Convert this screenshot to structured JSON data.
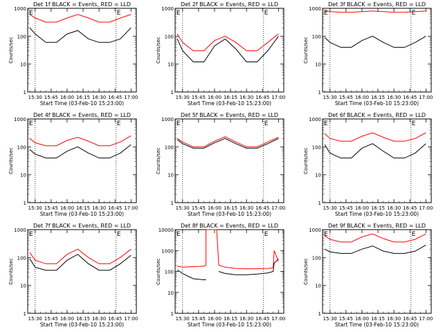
{
  "colors": {
    "events": "#000000",
    "lld": "#ff0000",
    "frame": "#000000",
    "background": "#ffffff"
  },
  "chart_data": [
    {
      "type": "line",
      "title": "Det 1f BLACK = Events, RED = LLD",
      "xlabel": "Start Time (03-Feb-10 15:23:00)",
      "ylabel": "Counts/sec",
      "x_ticks": [
        "15:30",
        "15:45",
        "16:00",
        "16:15",
        "16:30",
        "16:45",
        "17:00"
      ],
      "y_ticks": [
        "1",
        "10",
        "100",
        "1000"
      ],
      "ylim": [
        1,
        1000
      ],
      "yscale": "log",
      "markers": [
        "E",
        "E"
      ],
      "vlines": [
        "15:30",
        "16:46"
      ],
      "series": [
        {
          "role": "events",
          "x": [
            "15:25",
            "15:30",
            "15:40",
            "15:50",
            "16:00",
            "16:10",
            "16:20",
            "16:30",
            "16:40",
            "16:50",
            "17:00"
          ],
          "values": [
            200,
            120,
            60,
            60,
            120,
            160,
            80,
            60,
            60,
            80,
            200
          ]
        },
        {
          "role": "lld",
          "x": [
            "15:25",
            "15:30",
            "15:40",
            "15:50",
            "16:00",
            "16:10",
            "16:20",
            "16:30",
            "16:40",
            "16:50",
            "17:00"
          ],
          "values": [
            600,
            450,
            320,
            320,
            450,
            600,
            450,
            320,
            320,
            450,
            600
          ]
        }
      ]
    },
    {
      "type": "line",
      "title": "Det 2f BLACK = Events, RED = LLD",
      "xlabel": "Start Time (03-Feb-10 15:23:00)",
      "ylabel": "Counts/sec",
      "x_ticks": [
        "15:30",
        "15:45",
        "16:00",
        "16:15",
        "16:30",
        "16:45",
        "17:00"
      ],
      "y_ticks": [
        "1",
        "10",
        "100",
        "1000"
      ],
      "ylim": [
        1,
        1000
      ],
      "yscale": "log",
      "markers": [
        "E",
        "E"
      ],
      "vlines": [
        "15:30",
        "16:46"
      ],
      "series": [
        {
          "role": "events",
          "x": [
            "15:25",
            "15:30",
            "15:40",
            "15:50",
            "16:00",
            "16:10",
            "16:20",
            "16:30",
            "16:40",
            "16:50",
            "17:00"
          ],
          "values": [
            80,
            30,
            12,
            12,
            45,
            80,
            35,
            12,
            12,
            30,
            100
          ]
        },
        {
          "role": "lld",
          "x": [
            "15:25",
            "15:30",
            "15:40",
            "15:50",
            "16:00",
            "16:10",
            "16:20",
            "16:30",
            "16:40",
            "16:50",
            "17:00"
          ],
          "values": [
            120,
            60,
            30,
            30,
            70,
            100,
            60,
            30,
            30,
            60,
            120
          ]
        }
      ]
    },
    {
      "type": "line",
      "title": "Det 3f BLACK = Events, RED = LLD",
      "xlabel": "Start Time (03-Feb-10 15:23:00)",
      "ylabel": "Counts/sec",
      "x_ticks": [
        "15:30",
        "15:45",
        "16:00",
        "16:15",
        "16:30",
        "16:45",
        "17:00"
      ],
      "y_ticks": [
        "1",
        "10",
        "100",
        "1000"
      ],
      "ylim": [
        1,
        1000
      ],
      "yscale": "log",
      "markers": [
        "E",
        "E"
      ],
      "vlines": [
        "15:30",
        "16:46"
      ],
      "series": [
        {
          "role": "events",
          "x": [
            "15:25",
            "15:30",
            "15:40",
            "15:50",
            "16:00",
            "16:10",
            "16:20",
            "16:30",
            "16:40",
            "16:50",
            "17:00"
          ],
          "values": [
            90,
            60,
            40,
            40,
            70,
            100,
            60,
            40,
            40,
            60,
            100
          ]
        },
        {
          "role": "lld",
          "x": [
            "15:25",
            "15:30",
            "15:40",
            "15:50",
            "16:00",
            "16:10",
            "16:20",
            "16:30",
            "16:40",
            "16:50",
            "17:00"
          ],
          "values": [
            800,
            760,
            720,
            720,
            760,
            800,
            760,
            720,
            720,
            760,
            800
          ]
        }
      ]
    },
    {
      "type": "line",
      "title": "Det 4f BLACK = Events, RED = LLD",
      "xlabel": "Start Time (03-Feb-10 15:23:00)",
      "ylabel": "Counts/sec",
      "x_ticks": [
        "15:30",
        "15:45",
        "16:00",
        "16:15",
        "16:30",
        "16:45",
        "17:00"
      ],
      "y_ticks": [
        "1",
        "10",
        "100",
        "1000"
      ],
      "ylim": [
        1,
        1000
      ],
      "yscale": "log",
      "markers": [
        "E",
        "E"
      ],
      "vlines": [
        "15:30",
        "16:46"
      ],
      "series": [
        {
          "role": "events",
          "x": [
            "15:25",
            "15:30",
            "15:40",
            "15:50",
            "16:00",
            "16:10",
            "16:20",
            "16:30",
            "16:40",
            "16:50",
            "17:00"
          ],
          "values": [
            80,
            55,
            40,
            40,
            70,
            100,
            60,
            40,
            40,
            60,
            120
          ]
        },
        {
          "role": "lld",
          "x": [
            "15:25",
            "15:30",
            "15:40",
            "15:50",
            "16:00",
            "16:10",
            "16:20",
            "16:30",
            "16:40",
            "16:50",
            "17:00"
          ],
          "values": [
            200,
            140,
            110,
            110,
            170,
            220,
            160,
            110,
            110,
            150,
            250
          ]
        }
      ]
    },
    {
      "type": "line",
      "title": "Det 5f BLACK = Events, RED = LLD",
      "xlabel": "Start Time (03-Feb-10 15:23:00)",
      "ylabel": "Counts/sec",
      "x_ticks": [
        "15:30",
        "15:45",
        "16:00",
        "16:15",
        "16:30",
        "16:45",
        "17:00"
      ],
      "y_ticks": [
        "1",
        "10",
        "100",
        "1000"
      ],
      "ylim": [
        1,
        1000
      ],
      "yscale": "log",
      "markers": [
        "E",
        "E"
      ],
      "vlines": [
        "15:30",
        "16:46"
      ],
      "series": [
        {
          "role": "events",
          "x": [
            "15:25",
            "15:30",
            "15:40",
            "15:50",
            "16:00",
            "16:10",
            "16:20",
            "16:30",
            "16:40",
            "16:50",
            "17:00"
          ],
          "values": [
            180,
            130,
            90,
            90,
            140,
            200,
            130,
            90,
            90,
            130,
            200
          ]
        },
        {
          "role": "lld",
          "x": [
            "15:25",
            "15:30",
            "15:40",
            "15:50",
            "16:00",
            "16:10",
            "16:20",
            "16:30",
            "16:40",
            "16:50",
            "17:00"
          ],
          "values": [
            200,
            150,
            100,
            100,
            160,
            230,
            150,
            100,
            100,
            150,
            220
          ]
        }
      ]
    },
    {
      "type": "line",
      "title": "Det 6f BLACK = Events, RED = LLD",
      "xlabel": "Start Time (03-Feb-10 15:23:00)",
      "ylabel": "Counts/sec",
      "x_ticks": [
        "15:30",
        "15:45",
        "16:00",
        "16:15",
        "16:30",
        "16:45",
        "17:00"
      ],
      "y_ticks": [
        "1",
        "10",
        "100",
        "1000"
      ],
      "ylim": [
        1,
        1000
      ],
      "yscale": "log",
      "markers": [
        "E",
        "E"
      ],
      "vlines": [
        "15:30",
        "16:46"
      ],
      "series": [
        {
          "role": "events",
          "x": [
            "15:25",
            "15:30",
            "15:40",
            "15:50",
            "16:00",
            "16:10",
            "16:20",
            "16:30",
            "16:40",
            "16:50",
            "17:00"
          ],
          "values": [
            120,
            60,
            40,
            40,
            90,
            130,
            70,
            40,
            40,
            60,
            130
          ]
        },
        {
          "role": "lld",
          "x": [
            "15:25",
            "15:30",
            "15:40",
            "15:50",
            "16:00",
            "16:10",
            "16:20",
            "16:30",
            "16:40",
            "16:50",
            "17:00"
          ],
          "values": [
            300,
            200,
            160,
            160,
            240,
            320,
            220,
            160,
            160,
            200,
            320
          ]
        }
      ]
    },
    {
      "type": "line",
      "title": "Det 7f BLACK = Events, RED = LLD",
      "xlabel": "Start Time (03-Feb-10 15:23:00)",
      "ylabel": "Counts/sec",
      "x_ticks": [
        "15:30",
        "15:45",
        "16:00",
        "16:15",
        "16:30",
        "16:45",
        "17:00"
      ],
      "y_ticks": [
        "1",
        "10",
        "100",
        "1000"
      ],
      "ylim": [
        1,
        1000
      ],
      "yscale": "log",
      "markers": [
        "E",
        "E"
      ],
      "vlines": [
        "15:30",
        "16:46"
      ],
      "series": [
        {
          "role": "events",
          "x": [
            "15:25",
            "15:30",
            "15:40",
            "15:50",
            "16:00",
            "16:10",
            "16:20",
            "16:30",
            "16:40",
            "16:50",
            "17:00"
          ],
          "values": [
            90,
            45,
            35,
            35,
            80,
            130,
            60,
            35,
            35,
            60,
            120
          ]
        },
        {
          "role": "lld",
          "x": [
            "15:25",
            "15:30",
            "15:40",
            "15:50",
            "16:00",
            "16:10",
            "16:20",
            "16:30",
            "16:40",
            "16:50",
            "17:00"
          ],
          "values": [
            150,
            80,
            60,
            60,
            130,
            200,
            100,
            60,
            60,
            100,
            200
          ]
        }
      ]
    },
    {
      "type": "line",
      "title": "Det 8f BLACK = Events, RED = LLD",
      "xlabel": "Start Time (03-Feb-10 15:23:00)",
      "ylabel": "Counts/sec",
      "x_ticks": [
        "15:30",
        "15:45",
        "16:00",
        "16:15",
        "16:30",
        "16:45",
        "17:00"
      ],
      "y_ticks": [
        "1",
        "10",
        "100",
        "1000",
        "10000"
      ],
      "ylim": [
        1,
        10000
      ],
      "yscale": "log",
      "markers": [
        "E",
        "E"
      ],
      "vlines": [
        "15:30",
        "16:46"
      ],
      "series": [
        {
          "role": "events",
          "x": [
            "15:25",
            "15:30",
            "15:40",
            "15:50",
            "15:52",
            "16:02",
            "16:04",
            "16:10",
            "16:20",
            "16:30",
            "16:40",
            "16:50",
            "16:55",
            "16:56",
            "17:00"
          ],
          "values": [
            120,
            80,
            45,
            40,
            40,
            null,
            100,
            80,
            70,
            70,
            75,
            85,
            100,
            250,
            400
          ]
        },
        {
          "role": "lld",
          "x": [
            "15:25",
            "15:30",
            "15:40",
            "15:50",
            "15:52",
            "15:52",
            "16:00",
            "16:02",
            "16:04",
            "16:10",
            "16:20",
            "16:30",
            "16:40",
            "16:50",
            "16:55",
            "16:56",
            "17:00"
          ],
          "values": [
            180,
            160,
            170,
            180,
            200,
            10000,
            10000,
            10000,
            200,
            160,
            140,
            135,
            135,
            140,
            150,
            1000,
            300
          ]
        }
      ]
    },
    {
      "type": "line",
      "title": "Det 9f BLACK = Events, RED = LLD",
      "xlabel": "Start Time (03-Feb-10 15:23:00)",
      "ylabel": "Counts/sec",
      "x_ticks": [
        "15:30",
        "15:45",
        "16:00",
        "16:15",
        "16:30",
        "16:45",
        "17:00"
      ],
      "y_ticks": [
        "1",
        "10",
        "100",
        "1000"
      ],
      "ylim": [
        1,
        1000
      ],
      "yscale": "log",
      "markers": [
        "E",
        "E"
      ],
      "vlines": [
        "15:30",
        "16:46"
      ],
      "series": [
        {
          "role": "events",
          "x": [
            "15:25",
            "15:30",
            "15:40",
            "15:50",
            "16:00",
            "16:10",
            "16:20",
            "16:30",
            "16:40",
            "16:50",
            "17:00"
          ],
          "values": [
            200,
            160,
            140,
            140,
            200,
            260,
            170,
            140,
            140,
            170,
            280
          ]
        },
        {
          "role": "lld",
          "x": [
            "15:25",
            "15:30",
            "15:40",
            "15:50",
            "16:00",
            "16:10",
            "16:20",
            "16:30",
            "16:40",
            "16:50",
            "17:00"
          ],
          "values": [
            600,
            450,
            360,
            360,
            550,
            700,
            480,
            360,
            360,
            450,
            700
          ]
        }
      ]
    }
  ]
}
